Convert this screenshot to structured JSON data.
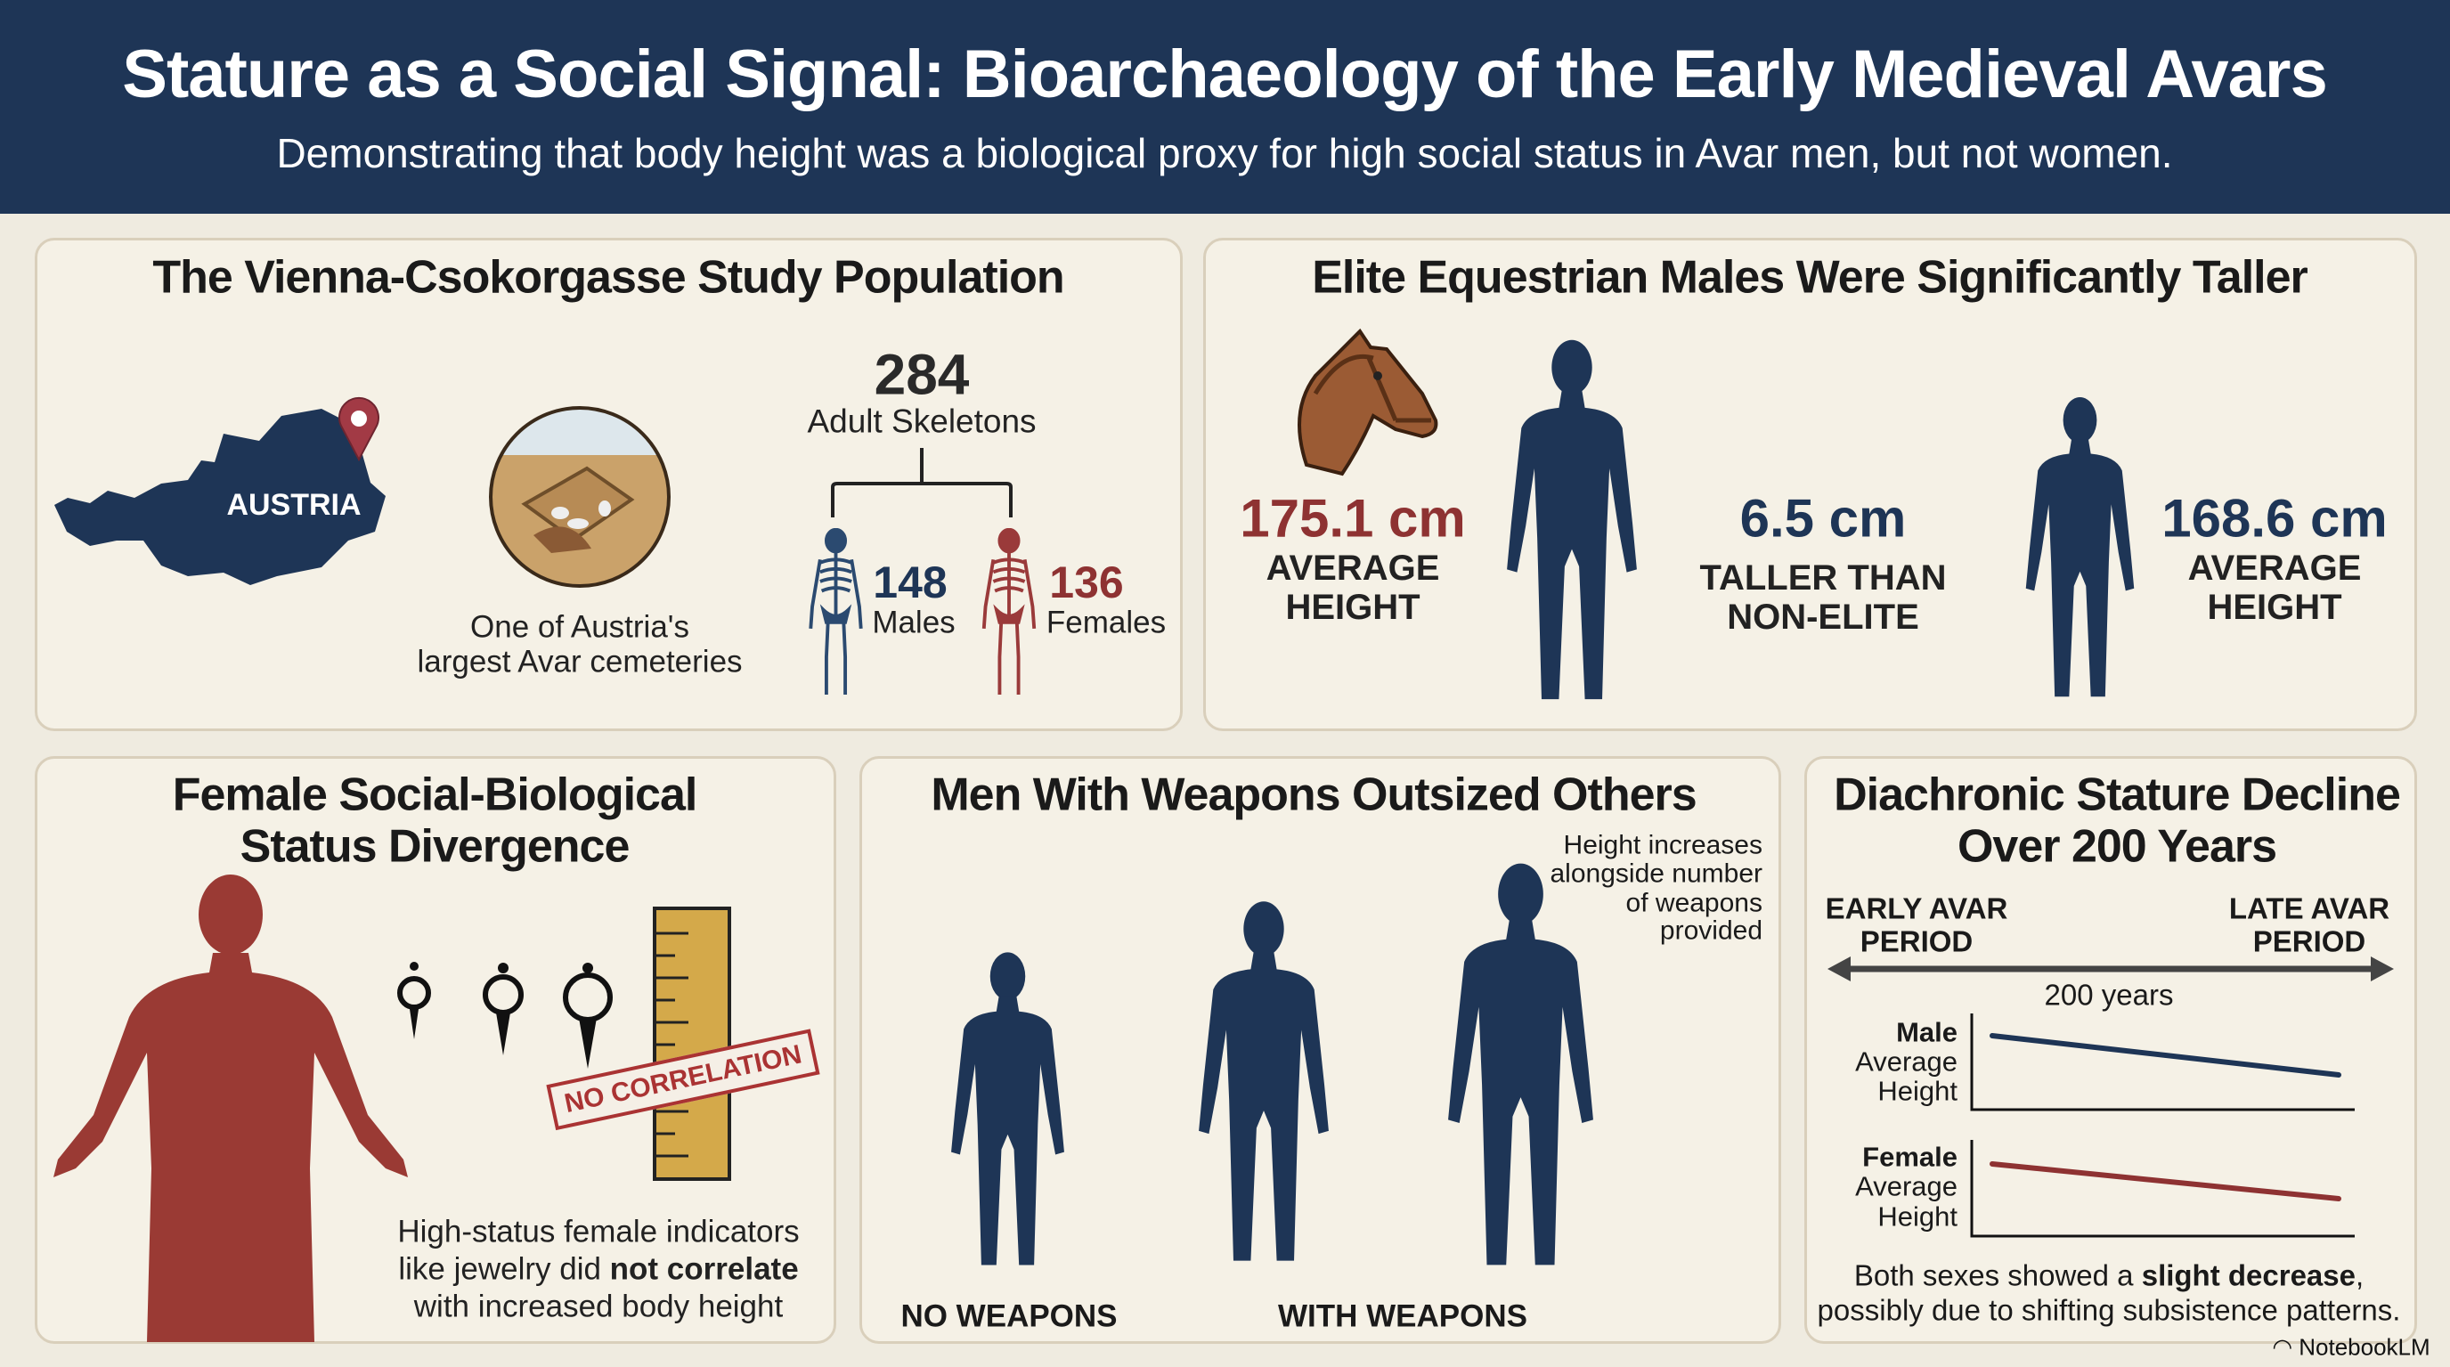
{
  "header": {
    "title": "Stature as a Social Signal: Bioarchaeology of the Early Medieval Avars",
    "subtitle": "Demonstrating that body height was a biological proxy for high social status in Avar men, but not women."
  },
  "colors": {
    "navy": "#1e3556",
    "red": "#8e3232",
    "panel_bg": "#f5f1e6",
    "ochre": "#d4a94a"
  },
  "population": {
    "title": "The Vienna-Csokorgasse Study Population",
    "map_label": "AUSTRIA",
    "map_icons": [
      "austria-map",
      "location-pin-icon",
      "excavated-grave-icon"
    ],
    "caption_line1": "One of Austria's",
    "caption_line2": "largest Avar cemeteries",
    "total": "284",
    "total_label": "Adult Skeletons",
    "males_count": "148",
    "males_label": "Males",
    "females_count": "136",
    "females_label": "Females"
  },
  "elite": {
    "title": "Elite Equestrian Males Were Significantly Taller",
    "elite_height": "175.1 cm",
    "elite_label1": "AVERAGE",
    "elite_label2": "HEIGHT",
    "difference": "6.5 cm",
    "difference_label1": "TALLER THAN",
    "difference_label2": "NON-ELITE",
    "nonelite_height": "168.6 cm",
    "nonelite_label1": "AVERAGE",
    "nonelite_label2": "HEIGHT"
  },
  "female": {
    "title_line1": "Female Social-Biological",
    "title_line2": "Status Divergence",
    "stamp": "NO CORRELATION",
    "caption_line1": "High-status female indicators",
    "caption_line2_a": "like jewelry did ",
    "caption_line2_b": "not correlate",
    "caption_line3": "with increased body height"
  },
  "weapons": {
    "title": "Men With Weapons Outsized Others",
    "note": [
      "Height increases",
      "alongside number",
      "of weapons",
      "provided"
    ],
    "label_none": "NO WEAPONS",
    "label_with": "WITH WEAPONS"
  },
  "decline": {
    "title_line1": "Diachronic Stature Decline",
    "title_line2": "Over 200 Years",
    "early_1": "EARLY AVAR",
    "early_2": "PERIOD",
    "late_1": "LATE AVAR",
    "late_2": "PERIOD",
    "span": "200 years",
    "male_1": "Male",
    "male_2": "Average",
    "male_3": "Height",
    "female_1": "Female",
    "female_2": "Average",
    "female_3": "Height",
    "male_trend": "slight decrease",
    "female_trend": "slight decrease",
    "caption_a": "Both sexes showed a ",
    "caption_b": "slight decrease",
    "caption_c": ",",
    "caption_line2": "possibly due to shifting subsistence patterns."
  },
  "watermark": "NotebookLM"
}
